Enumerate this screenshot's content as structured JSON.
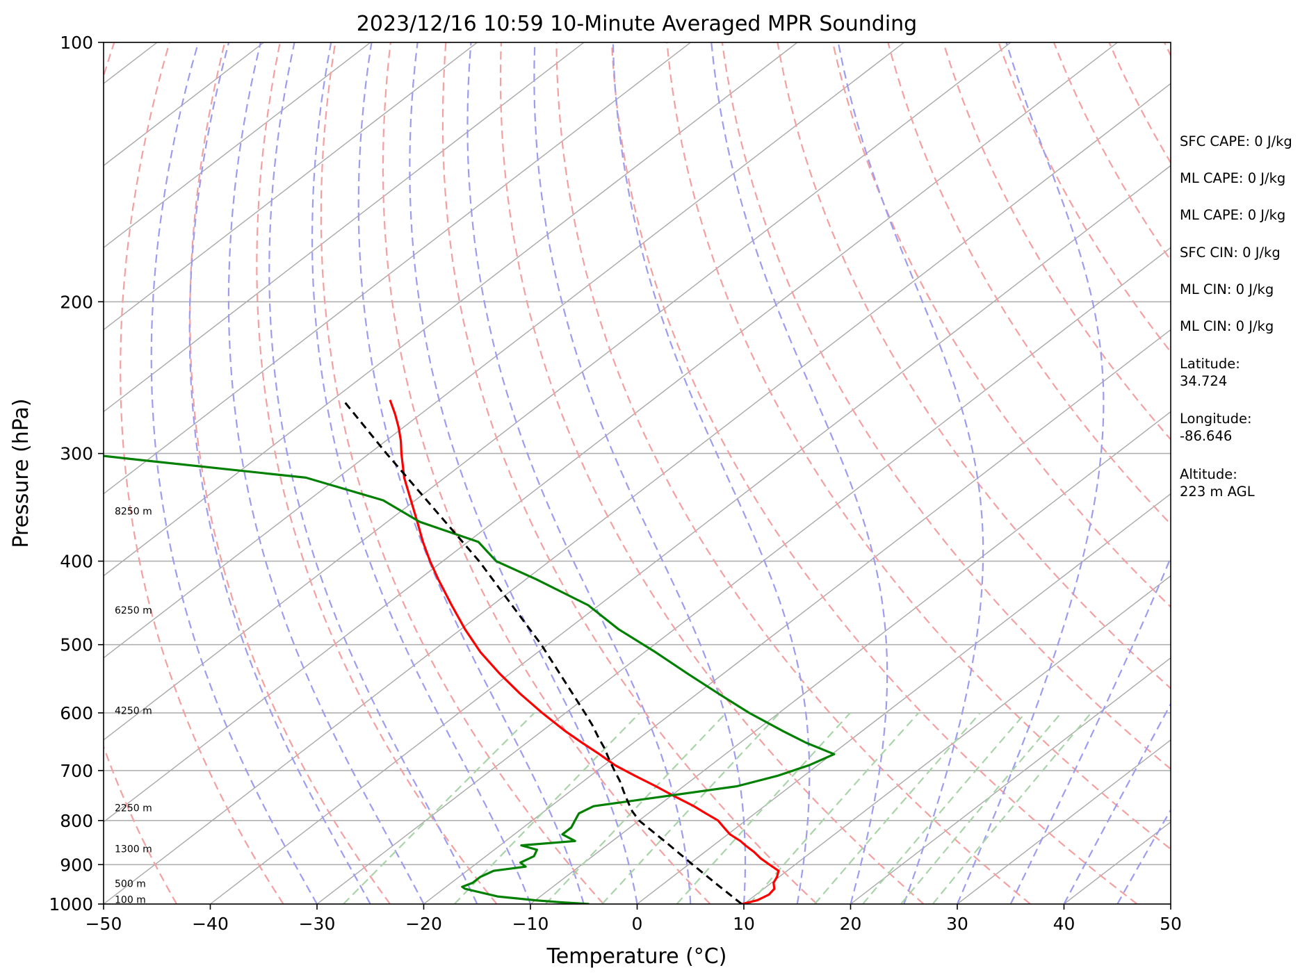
{
  "chart_data": {
    "type": "skew-t",
    "title": "2023/12/16 10:59 10-Minute Averaged MPR Sounding",
    "xlabel": "Temperature (°C)",
    "ylabel": "Pressure (hPa)",
    "xlim": [
      -50,
      50
    ],
    "ylim": [
      1000,
      100
    ],
    "y_scale": "log",
    "x_ticks": [
      -50,
      -40,
      -30,
      -20,
      -10,
      0,
      10,
      20,
      30,
      40,
      50
    ],
    "x_tick_labels": [
      "−50",
      "−40",
      "−30",
      "−20",
      "−10",
      "0",
      "10",
      "20",
      "30",
      "40",
      "50"
    ],
    "y_ticks": [
      100,
      200,
      300,
      400,
      500,
      600,
      700,
      800,
      900,
      1000
    ],
    "y_tick_labels": [
      "100",
      "200",
      "300",
      "400",
      "500",
      "600",
      "700",
      "800",
      "900",
      "1000"
    ],
    "grid": true,
    "background_lines": {
      "skewed_isotherms_step_c": 10,
      "dry_adiabats": {
        "color": "#f4a0a0",
        "style": "dashed"
      },
      "moist_adiabats": {
        "color": "#9c9cf0",
        "style": "dashed"
      },
      "mixing_ratio_lines": {
        "color": "#a8d4a8",
        "style": "dashed",
        "top_pressure_hpa": 600
      }
    },
    "height_labels": [
      {
        "label": "100 m",
        "pressure": 988
      },
      {
        "label": "500 m",
        "pressure": 947
      },
      {
        "label": "1300 m",
        "pressure": 863
      },
      {
        "label": "2250 m",
        "pressure": 773
      },
      {
        "label": "4250 m",
        "pressure": 596
      },
      {
        "label": "6250 m",
        "pressure": 456
      },
      {
        "label": "8250 m",
        "pressure": 350
      }
    ],
    "series": [
      {
        "color": "#ff0000",
        "style": "solid",
        "pressure": [
          1000,
          990,
          975,
          960,
          945,
          930,
          915,
          900,
          885,
          870,
          855,
          845,
          830,
          815,
          800,
          785,
          770,
          750,
          730,
          710,
          690,
          670,
          650,
          630,
          600,
          570,
          540,
          510,
          480,
          450,
          420,
          400,
          380,
          360,
          340,
          320,
          300,
          290,
          280,
          270,
          260
        ],
        "temperature": [
          9.8,
          10.8,
          11.2,
          11.0,
          10.2,
          9.8,
          9.2,
          7.6,
          6.0,
          4.6,
          3.0,
          2.0,
          0.2,
          -1.2,
          -2.6,
          -4.6,
          -6.6,
          -9.6,
          -12.6,
          -15.8,
          -19.0,
          -21.8,
          -24.8,
          -27.8,
          -32.2,
          -36.6,
          -41.0,
          -45.4,
          -49.6,
          -53.8,
          -58.2,
          -61.2,
          -64.2,
          -67.2,
          -70.4,
          -73.8,
          -77.0,
          -78.6,
          -80.4,
          -82.4,
          -84.6
        ]
      },
      {
        "color": "#008000",
        "style": "solid",
        "pressure": [
          1000,
          995,
          990,
          980,
          960,
          955,
          945,
          930,
          915,
          905,
          895,
          880,
          865,
          855,
          845,
          830,
          815,
          800,
          785,
          770,
          730,
          710,
          690,
          670,
          650,
          630,
          600,
          570,
          540,
          510,
          480,
          450,
          420,
          400,
          380,
          360,
          340,
          320,
          305,
          295,
          290,
          285,
          280
        ],
        "dewpoint": [
          -4.5,
          -7.5,
          -10.0,
          -14.0,
          -18.0,
          -18.5,
          -18.0,
          -18.0,
          -17.5,
          -15.0,
          -16.0,
          -15.5,
          -16.0,
          -18.0,
          -13.5,
          -15.5,
          -15.5,
          -16.0,
          -16.5,
          -16.0,
          -5.0,
          -2.5,
          -0.8,
          0.2,
          -3.8,
          -7.4,
          -12.8,
          -18.0,
          -23.4,
          -29.0,
          -35.2,
          -41.0,
          -49.0,
          -55.0,
          -59.0,
          -67.0,
          -73.0,
          -83.0,
          -101.0,
          -113.0,
          -132.0,
          -165.0,
          -200.0
        ]
      },
      {
        "color": "#000000",
        "style": "dashed",
        "pressure": [
          1000,
          950,
          900,
          850,
          800,
          780,
          760,
          740,
          720,
          700,
          680,
          660,
          640,
          620,
          600,
          500,
          400,
          300,
          260
        ],
        "temperature": [
          9.8,
          5.2,
          0.4,
          -4.6,
          -10.0,
          -11.8,
          -13.4,
          -15.0,
          -16.6,
          -18.4,
          -20.2,
          -22.0,
          -24.0,
          -26.0,
          -28.2,
          -40.6,
          -56.6,
          -78.4,
          -89.0
        ]
      }
    ],
    "annotations": [
      "SFC CAPE: 0 J/kg",
      "ML CAPE: 0 J/kg",
      "ML CAPE: 0 J/kg",
      "SFC CIN: 0 J/kg",
      "ML CIN: 0 J/kg",
      "ML CIN: 0 J/kg",
      "Latitude:",
      "34.724",
      "Longitude:",
      "-86.646",
      "Altitude:",
      "223 m AGL"
    ]
  }
}
